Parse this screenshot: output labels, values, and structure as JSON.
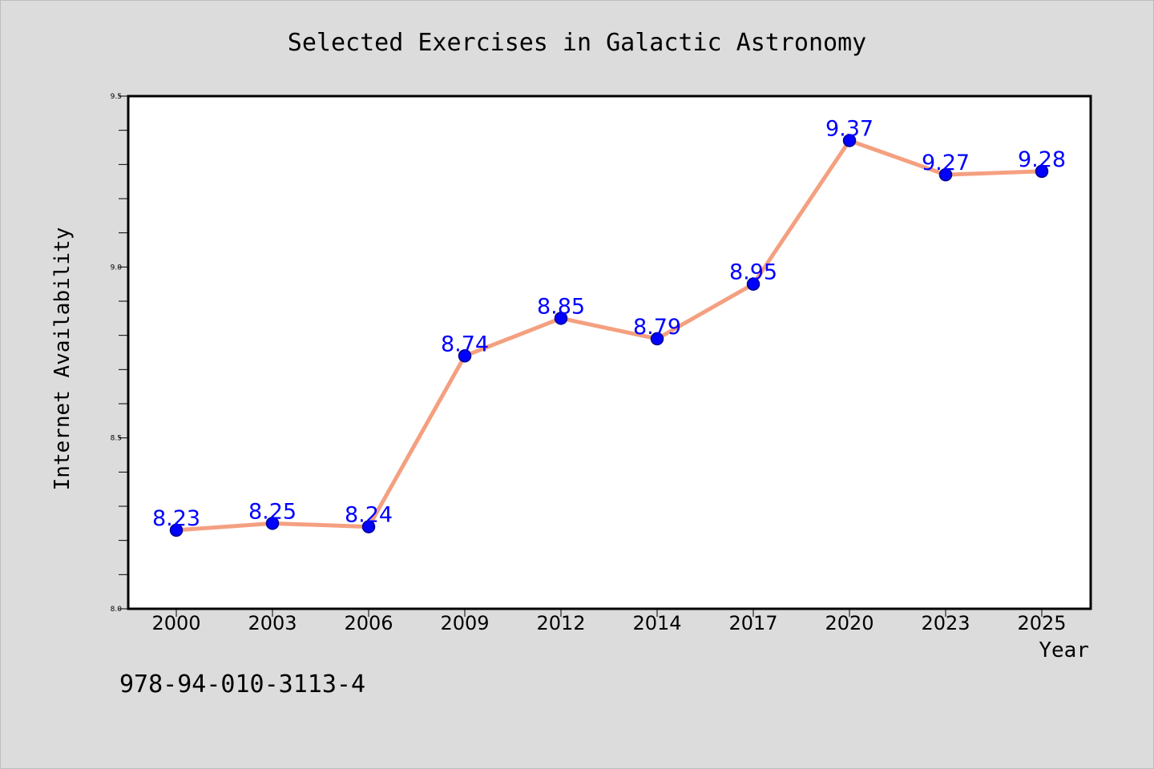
{
  "chart_data": {
    "type": "line",
    "title": "Selected Exercises in Galactic Astronomy",
    "xlabel": "Year",
    "ylabel": "Internet Availability",
    "categories": [
      "2000",
      "2003",
      "2006",
      "2009",
      "2012",
      "2014",
      "2017",
      "2020",
      "2023",
      "2025"
    ],
    "series": [
      {
        "values": [
          8.23,
          8.25,
          8.24,
          8.74,
          8.85,
          8.79,
          8.95,
          9.37,
          9.27,
          9.28
        ]
      }
    ],
    "data_labels": [
      "8.23",
      "8.25",
      "8.24",
      "8.74",
      "8.85",
      "8.79",
      "8.95",
      "9.37",
      "9.27",
      "9.28"
    ],
    "ylim": [
      8.0,
      9.5
    ],
    "yticks": [
      "8.0",
      "8.5",
      "9.0",
      "9.5"
    ],
    "grid": false,
    "legend": "none",
    "colors": {
      "line": "#f4a080",
      "marker_fill": "#0000ff",
      "marker_edge": "#00008b",
      "data_label": "#0000ff",
      "background": "#dcdcdc",
      "plot_area": "#ffffff"
    }
  },
  "footer": {
    "code": "978-94-010-3113-4"
  }
}
